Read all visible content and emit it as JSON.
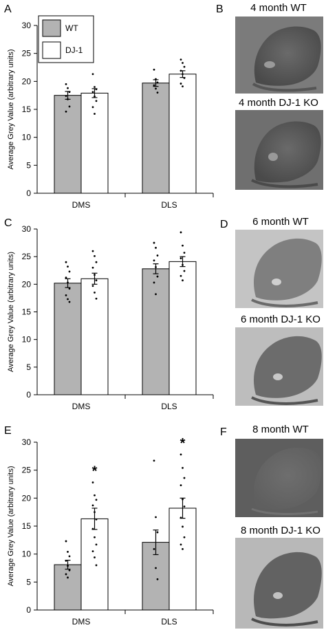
{
  "chart_data": [
    {
      "panel": "A",
      "type": "bar",
      "ylabel": "Average Grey Value (arbitrary units)",
      "ylim": [
        0,
        30
      ],
      "yticks": [
        0,
        5,
        10,
        15,
        20,
        25,
        30
      ],
      "categories": [
        "DMS",
        "DLS"
      ],
      "legend": {
        "placement": "top-left",
        "entries": [
          "WT",
          "DJ-1"
        ]
      },
      "series": [
        {
          "name": "WT",
          "values": [
            17.5,
            19.7
          ],
          "errors": [
            0.7,
            0.6
          ],
          "color": "#b3b3b3",
          "points": [
            [
              19.5,
              18.8,
              18.1,
              17.4,
              16.8,
              15.5,
              14.6
            ],
            [
              22.1,
              20.4,
              19.8,
              19.3,
              18.7,
              18.0
            ]
          ]
        },
        {
          "name": "DJ-1",
          "values": [
            17.9,
            21.3
          ],
          "errors": [
            0.8,
            0.6
          ],
          "color": "#ffffff",
          "points": [
            [
              21.3,
              19.0,
              18.6,
              18.1,
              17.3,
              16.5,
              15.4,
              14.2
            ],
            [
              23.9,
              23.3,
              22.6,
              21.9,
              21.3,
              20.6,
              19.6,
              19.1
            ]
          ]
        }
      ],
      "significance": [
        null,
        null
      ],
      "grid": false
    },
    {
      "panel": "C",
      "type": "bar",
      "ylabel": "Average Grey Value (arbitrary units)",
      "ylim": [
        0,
        30
      ],
      "yticks": [
        0,
        5,
        10,
        15,
        20,
        25,
        30
      ],
      "categories": [
        "DMS",
        "DLS"
      ],
      "series": [
        {
          "name": "WT",
          "values": [
            20.2,
            22.8
          ],
          "errors": [
            0.8,
            0.9
          ],
          "color": "#b3b3b3",
          "points": [
            [
              24.0,
              23.2,
              22.3,
              21.2,
              20.3,
              19.2,
              18.0,
              17.3,
              16.8
            ],
            [
              27.5,
              26.6,
              25.2,
              24.3,
              23.1,
              21.4,
              20.3,
              18.2
            ]
          ]
        },
        {
          "name": "DJ-1",
          "values": [
            21.0,
            24.1
          ],
          "errors": [
            1.0,
            0.9
          ],
          "color": "#ffffff",
          "points": [
            [
              26.0,
              25.1,
              24.0,
              23.0,
              21.7,
              20.7,
              19.7,
              18.5,
              17.4
            ],
            [
              29.4,
              27.0,
              25.7,
              24.7,
              23.5,
              22.4,
              21.5,
              20.7
            ]
          ]
        }
      ],
      "significance": [
        null,
        null
      ],
      "grid": false
    },
    {
      "panel": "E",
      "type": "bar",
      "ylabel": "Average Grey Value (arbitrary units)",
      "ylim": [
        0,
        30
      ],
      "yticks": [
        0,
        5,
        10,
        15,
        20,
        25,
        30
      ],
      "categories": [
        "DMS",
        "DLS"
      ],
      "series": [
        {
          "name": "WT",
          "values": [
            8.1,
            12.1
          ],
          "errors": [
            0.8,
            2.2
          ],
          "color": "#b3b3b3",
          "points": [
            [
              12.3,
              10.4,
              9.6,
              8.8,
              7.9,
              7.1,
              6.4,
              5.8
            ],
            [
              26.7,
              16.6,
              13.9,
              10.9,
              7.5,
              5.5
            ]
          ]
        },
        {
          "name": "DJ-1",
          "values": [
            16.3,
            18.2
          ],
          "errors": [
            1.9,
            1.8
          ],
          "color": "#ffffff",
          "points": [
            [
              22.8,
              20.5,
              19.7,
              18.7,
              17.5,
              16.2,
              14.5,
              13.0,
              11.7,
              10.5,
              9.4,
              8.0
            ],
            [
              27.8,
              25.4,
              23.6,
              22.3,
              19.8,
              18.5,
              16.5,
              14.9,
              13.0,
              11.7,
              10.9
            ]
          ]
        }
      ],
      "significance": [
        null,
        "*"
      ],
      "significance_marks": [
        [
          "*",
          1,
          0
        ],
        [
          "*",
          1,
          1
        ]
      ],
      "grid": false
    }
  ],
  "images": [
    {
      "letter": "B",
      "top_caption": "4 month WT",
      "bottom_caption": "4 month DJ-1 KO"
    },
    {
      "letter": "D",
      "top_caption": "6 month WT",
      "bottom_caption": "6 month DJ-1 KO"
    },
    {
      "letter": "F",
      "top_caption": "8 month WT",
      "bottom_caption": "8 month DJ-1 KO"
    }
  ]
}
